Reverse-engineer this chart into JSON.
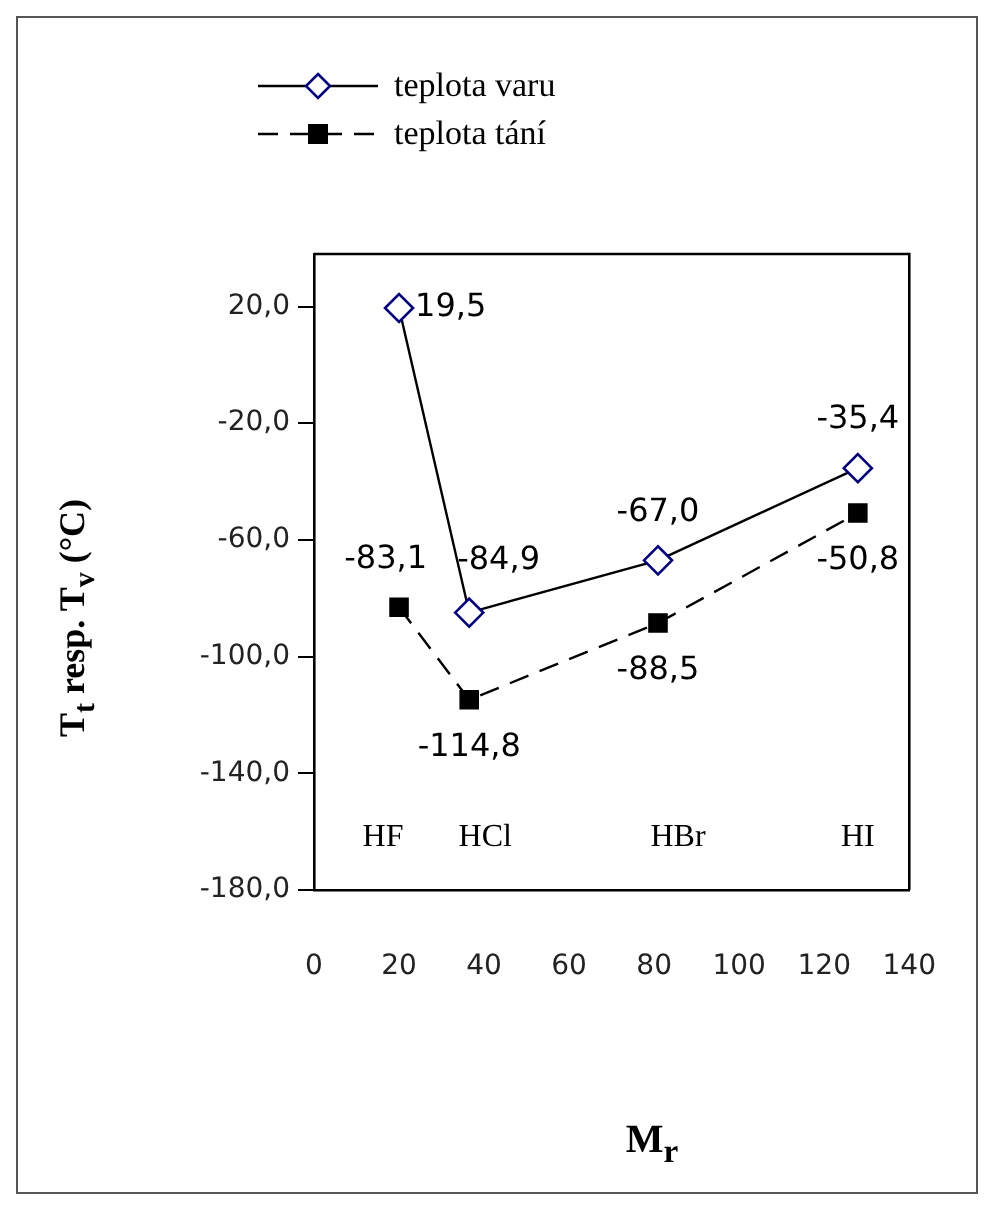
{
  "chart_data": {
    "type": "line",
    "xlabel": "M$_{r}$",
    "ylabel": "T$_{t}$ resp. T$_{v}$ (°C)",
    "xlim": [
      0,
      140
    ],
    "xticks": [
      0,
      20,
      40,
      60,
      80,
      100,
      120,
      140
    ],
    "ylim": [
      -180,
      38
    ],
    "yticks": [
      {
        "value": -180,
        "label": "-180,0"
      },
      {
        "value": -140,
        "label": "-140,0"
      },
      {
        "value": -100,
        "label": "-100,0"
      },
      {
        "value": -60,
        "label": "-60,0"
      },
      {
        "value": -20,
        "label": "-20,0"
      },
      {
        "value": 20,
        "label": "20,0"
      }
    ],
    "series": [
      {
        "name": "teplota varu",
        "color": "#000080",
        "marker": "diamond",
        "line_style": "solid",
        "x": [
          20,
          36.5,
          80.9,
          127.9
        ],
        "values": [
          19.5,
          -84.9,
          -67.0,
          -35.4
        ],
        "value_labels": [
          "19,5",
          "-84,9",
          "-67,0",
          "-35,4"
        ]
      },
      {
        "name": "teplota tání",
        "color": "#000000",
        "marker": "square",
        "line_style": "dashed",
        "x": [
          20,
          36.5,
          80.9,
          127.9
        ],
        "values": [
          -83.1,
          -114.8,
          -88.5,
          -50.8
        ],
        "value_labels": [
          "-83,1",
          "-114,8",
          "-88,5",
          "-50,8"
        ]
      }
    ],
    "annotations": [
      "HF",
      "HCl",
      "HBr",
      "HI"
    ],
    "legend": "top",
    "grid": false
  }
}
